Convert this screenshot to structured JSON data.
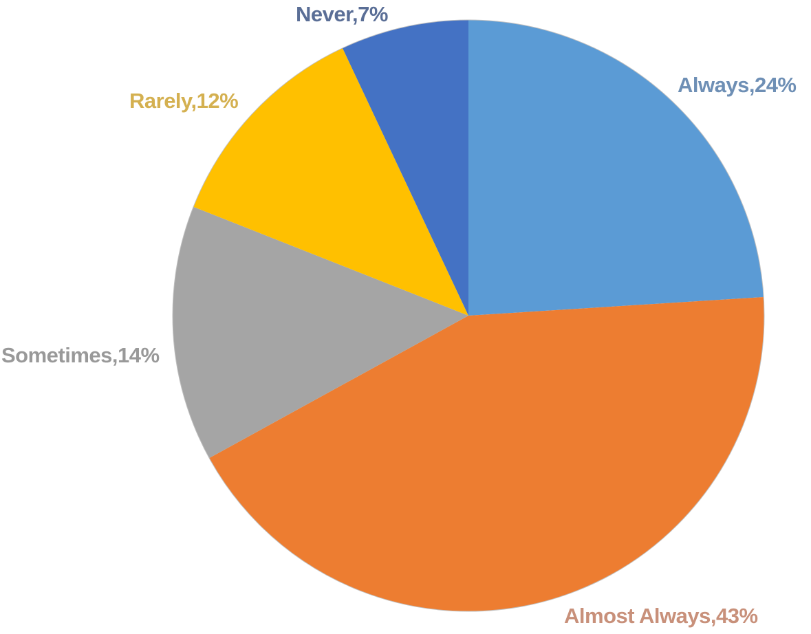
{
  "chart_data": {
    "type": "pie",
    "categories": [
      "Always",
      "Almost Always",
      "Sometimes",
      "Rarely",
      "Never"
    ],
    "values": [
      24,
      43,
      14,
      12,
      7
    ],
    "value_unit": "%",
    "data_labels": [
      "Always,24%",
      "Almost Always,43%",
      "Sometimes,14%",
      "Rarely,12%",
      "Never,7%"
    ],
    "colors": [
      "#5B9BD5",
      "#ED7D31",
      "#A5A5A5",
      "#FFC000",
      "#4472C4"
    ],
    "label_colors": [
      "#6E8FB5",
      "#C8907A",
      "#999999",
      "#D4B050",
      "#5A6E96"
    ],
    "start_angle": "12 o'clock",
    "direction": "clockwise",
    "legend": "none",
    "title": ""
  }
}
